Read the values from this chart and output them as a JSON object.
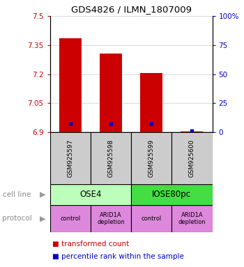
{
  "title": "GDS4826 / ILMN_1807009",
  "samples": [
    "GSM925597",
    "GSM925598",
    "GSM925599",
    "GSM925600"
  ],
  "red_values": [
    7.385,
    7.305,
    7.205,
    6.905
  ],
  "blue_values_pct": [
    7,
    7,
    7,
    1
  ],
  "ylim_left": [
    6.9,
    7.5
  ],
  "ylim_right": [
    0,
    100
  ],
  "left_ticks": [
    6.9,
    7.05,
    7.2,
    7.35,
    7.5
  ],
  "right_ticks": [
    0,
    25,
    50,
    75,
    100
  ],
  "right_tick_labels": [
    "0",
    "25",
    "50",
    "75",
    "100%"
  ],
  "left_color": "#cc0000",
  "right_color": "#0000cc",
  "bar_width": 0.55,
  "cell_line_groups": [
    {
      "label": "OSE4",
      "cols": [
        0,
        1
      ],
      "color": "#bbffbb"
    },
    {
      "label": "IOSE80pc",
      "cols": [
        2,
        3
      ],
      "color": "#44dd44"
    }
  ],
  "protocol_groups": [
    {
      "label": "control",
      "col": 0,
      "color": "#dd88dd"
    },
    {
      "label": "ARID1A\ndepletion",
      "col": 1,
      "color": "#dd88dd"
    },
    {
      "label": "control",
      "col": 2,
      "color": "#dd88dd"
    },
    {
      "label": "ARID1A\ndepletion",
      "col": 3,
      "color": "#dd88dd"
    }
  ],
  "cell_line_label": "cell line",
  "protocol_label": "protocol",
  "legend_red": "transformed count",
  "legend_blue": "percentile rank within the sample",
  "sample_box_color": "#cccccc",
  "base_value": 6.9,
  "background": "#ffffff"
}
